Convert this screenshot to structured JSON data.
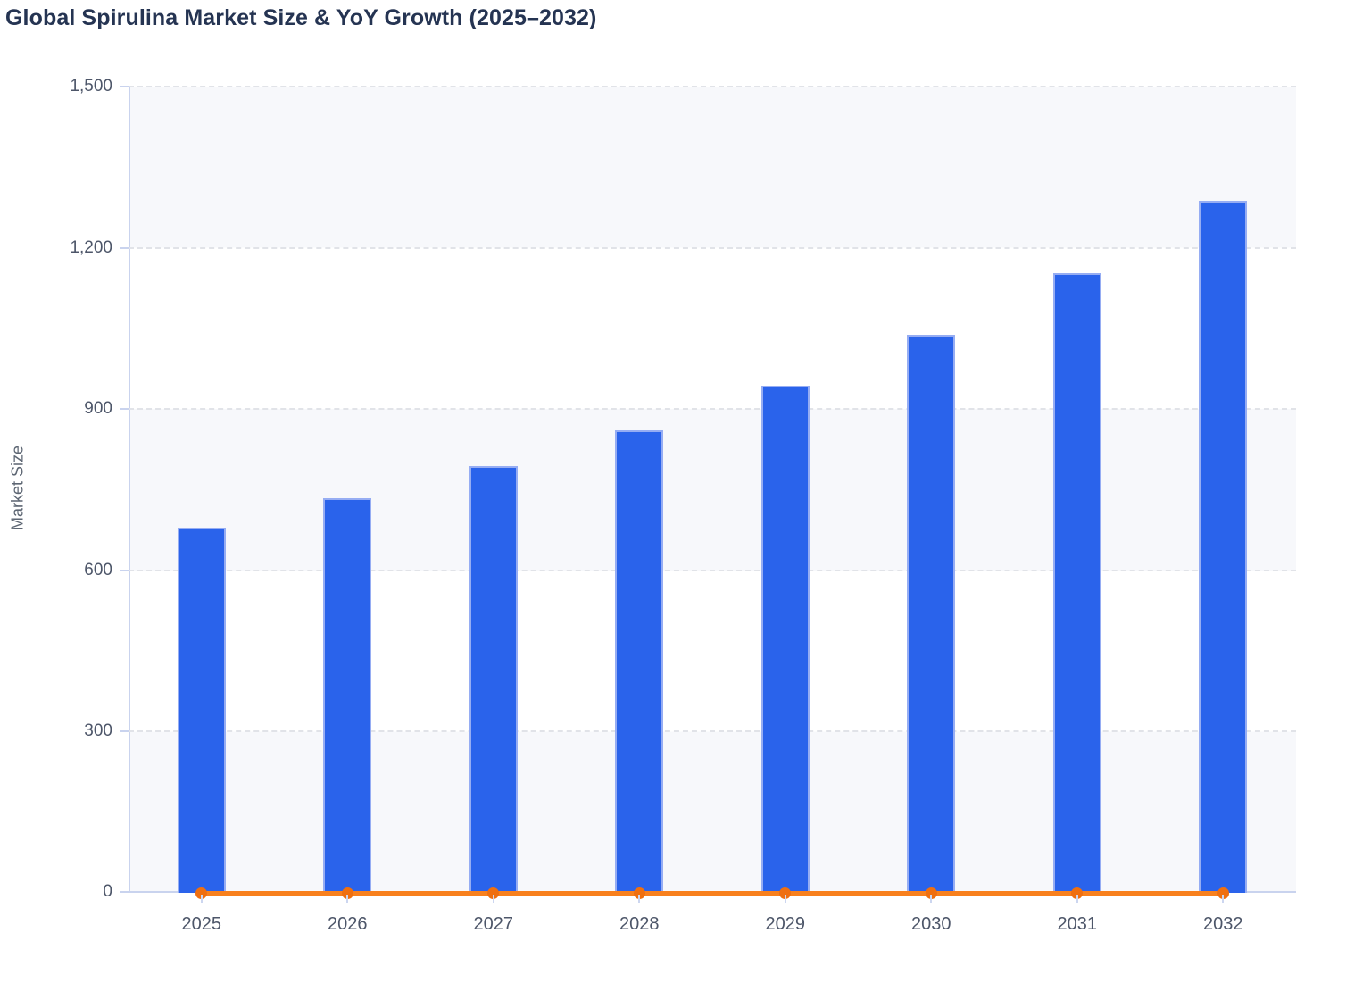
{
  "header": {
    "title": "Global Spirulina Market Size & YoY Growth (2025–2032)"
  },
  "y_axis": {
    "title": "Market Size",
    "tick_labels": [
      "0",
      "300",
      "600",
      "900",
      "1,200",
      "1,500"
    ]
  },
  "chart_data": {
    "type": "bar",
    "title": "Global Spirulina Market Size & YoY Growth (2025–2032)",
    "categories": [
      "2025",
      "2026",
      "2027",
      "2028",
      "2029",
      "2030",
      "2031",
      "2032"
    ],
    "series": [
      {
        "name": "Market Size",
        "type": "bar",
        "color": "#2a63eb",
        "values": [
          680,
          734,
          794,
          860,
          943,
          1038,
          1153,
          1287
        ]
      },
      {
        "name": "YoY Growth",
        "type": "line",
        "color": "#f8801d",
        "marker_color": "#ef6f10",
        "values_as_plotted_on_axis": [
          0,
          0,
          0,
          0,
          0,
          0,
          0,
          0
        ]
      }
    ],
    "xlabel": "",
    "ylabel": "Market Size",
    "ylim": [
      0,
      1500
    ],
    "ytick_step": 300,
    "grid": "horizontal dashed",
    "plot_bands": "alternating light-gray / white every 300 units",
    "legend_position": "none"
  },
  "colors": {
    "bar_fill": "#2a63eb",
    "bar_border": "#96adf3",
    "line_orange": "#f8801d",
    "marker_orange": "#ef6f10",
    "axis_line": "#c9d3ee",
    "gridline": "#e1e3e8",
    "band_gray": "#f7f8fb",
    "title_text": "#253452",
    "tick_text": "#4d5669"
  }
}
